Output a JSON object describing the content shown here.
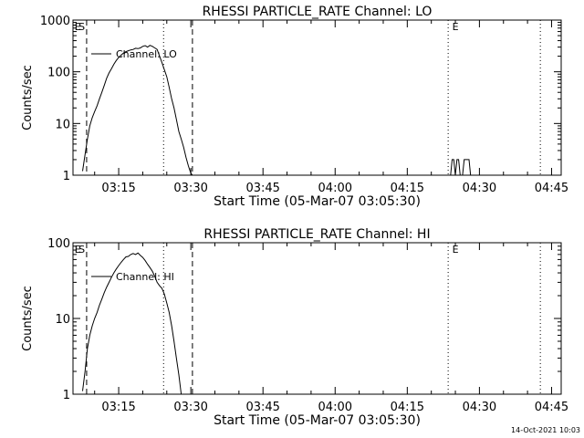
{
  "footer_date": "14-Oct-2021 10:03",
  "chart_data": [
    {
      "type": "line",
      "title": "RHESSI PARTICLE_RATE Channel: LO",
      "xlabel": "Start Time (05-Mar-07 03:05:30)",
      "ylabel": "Counts/sec",
      "y_scale": "log",
      "ylim": [
        1,
        1000
      ],
      "xlim": [
        "03:05:30",
        "04:47:00"
      ],
      "x_ticks": [
        "03:15",
        "03:30",
        "03:45",
        "04:00",
        "04:15",
        "04:30",
        "04:45"
      ],
      "y_ticks": [
        "1",
        "10",
        "100",
        "1000"
      ],
      "legend": "Channel: LO",
      "legend_position": "top-left",
      "marker_labels": [
        {
          "text": "E",
          "x": "03:06:30"
        },
        {
          "text": "S",
          "x": "03:07:20"
        },
        {
          "text": "E",
          "x": "04:25:00"
        }
      ],
      "vlines": [
        {
          "x": "03:08:20",
          "style": "dashed"
        },
        {
          "x": "03:24:20",
          "style": "dotted"
        },
        {
          "x": "03:30:20",
          "style": "dashed"
        },
        {
          "x": "04:23:30",
          "style": "dotted"
        },
        {
          "x": "04:42:40",
          "style": "dotted"
        }
      ],
      "series": [
        {
          "x": [
            "03:07:30",
            "03:08:00",
            "03:08:30",
            "03:09:00",
            "03:09:30",
            "03:10:00",
            "03:10:30",
            "03:11:00",
            "03:11:30",
            "03:12:00",
            "03:12:30",
            "03:13:00",
            "03:13:30",
            "03:14:00",
            "03:14:30",
            "03:15:00",
            "03:15:30",
            "03:16:00",
            "03:16:30",
            "03:17:00",
            "03:17:30",
            "03:18:00",
            "03:18:30",
            "03:19:00",
            "03:19:30",
            "03:20:00",
            "03:20:30",
            "03:21:00",
            "03:21:30",
            "03:22:00",
            "03:22:30",
            "03:23:00",
            "03:23:30",
            "03:24:00",
            "03:24:30",
            "03:25:00",
            "03:25:30",
            "03:26:00",
            "03:26:30",
            "03:27:00",
            "03:27:30",
            "03:28:00",
            "03:28:30",
            "03:29:00",
            "03:29:30",
            "03:30:00",
            "03:30:20"
          ],
          "y": [
            1.2,
            2.5,
            5,
            9,
            13,
            17,
            22,
            30,
            40,
            55,
            75,
            95,
            115,
            140,
            165,
            190,
            210,
            230,
            245,
            255,
            265,
            270,
            285,
            280,
            290,
            310,
            320,
            300,
            325,
            310,
            290,
            270,
            200,
            150,
            110,
            80,
            50,
            30,
            20,
            12,
            7,
            5,
            3.5,
            2.2,
            1.5,
            1.1,
            1.0
          ]
        },
        {
          "x": [
            "04:24:00",
            "04:24:20",
            "04:24:40",
            "04:25:00",
            "04:25:20",
            "04:25:40",
            "04:26:00",
            "04:26:30",
            "04:26:50",
            "04:27:10",
            "04:27:30",
            "04:27:50",
            "04:28:10",
            "04:28:30"
          ],
          "y": [
            1,
            2,
            2,
            1,
            2,
            2,
            1,
            1,
            2,
            2,
            2,
            2,
            1,
            1
          ]
        }
      ]
    },
    {
      "type": "line",
      "title": "RHESSI PARTICLE_RATE Channel: HI",
      "xlabel": "Start Time (05-Mar-07 03:05:30)",
      "ylabel": "Counts/sec",
      "y_scale": "log",
      "ylim": [
        1,
        100
      ],
      "xlim": [
        "03:05:30",
        "04:47:00"
      ],
      "x_ticks": [
        "03:15",
        "03:30",
        "03:45",
        "04:00",
        "04:15",
        "04:30",
        "04:45"
      ],
      "y_ticks": [
        "1",
        "10",
        "100"
      ],
      "legend": "Channel: HI",
      "legend_position": "top-left",
      "marker_labels": [
        {
          "text": "E",
          "x": "03:06:30"
        },
        {
          "text": "S",
          "x": "03:07:20"
        },
        {
          "text": "E",
          "x": "04:25:00"
        }
      ],
      "vlines": [
        {
          "x": "03:08:20",
          "style": "dashed"
        },
        {
          "x": "03:24:20",
          "style": "dotted"
        },
        {
          "x": "03:30:20",
          "style": "dashed"
        },
        {
          "x": "04:23:30",
          "style": "dotted"
        },
        {
          "x": "04:42:40",
          "style": "dotted"
        }
      ],
      "series": [
        {
          "x": [
            "03:07:30",
            "03:08:00",
            "03:08:30",
            "03:09:00",
            "03:09:30",
            "03:10:00",
            "03:10:30",
            "03:11:00",
            "03:11:30",
            "03:12:00",
            "03:12:30",
            "03:13:00",
            "03:13:30",
            "03:14:00",
            "03:14:30",
            "03:15:00",
            "03:15:30",
            "03:16:00",
            "03:16:30",
            "03:17:00",
            "03:17:30",
            "03:18:00",
            "03:18:30",
            "03:19:00",
            "03:19:30",
            "03:20:00",
            "03:20:30",
            "03:21:00",
            "03:21:30",
            "03:22:00",
            "03:22:30",
            "03:23:00",
            "03:23:30",
            "03:24:00",
            "03:24:30",
            "03:25:00",
            "03:25:30",
            "03:26:00",
            "03:26:30",
            "03:27:00",
            "03:27:30",
            "03:28:00"
          ],
          "y": [
            1.1,
            2,
            4,
            6,
            8,
            10,
            12,
            15,
            18,
            22,
            26,
            30,
            35,
            40,
            45,
            50,
            55,
            60,
            65,
            66,
            70,
            72,
            70,
            73,
            68,
            64,
            58,
            52,
            47,
            42,
            36,
            30,
            27,
            25,
            21,
            16,
            12,
            8,
            5,
            3,
            1.8,
            1.0
          ]
        }
      ]
    }
  ]
}
